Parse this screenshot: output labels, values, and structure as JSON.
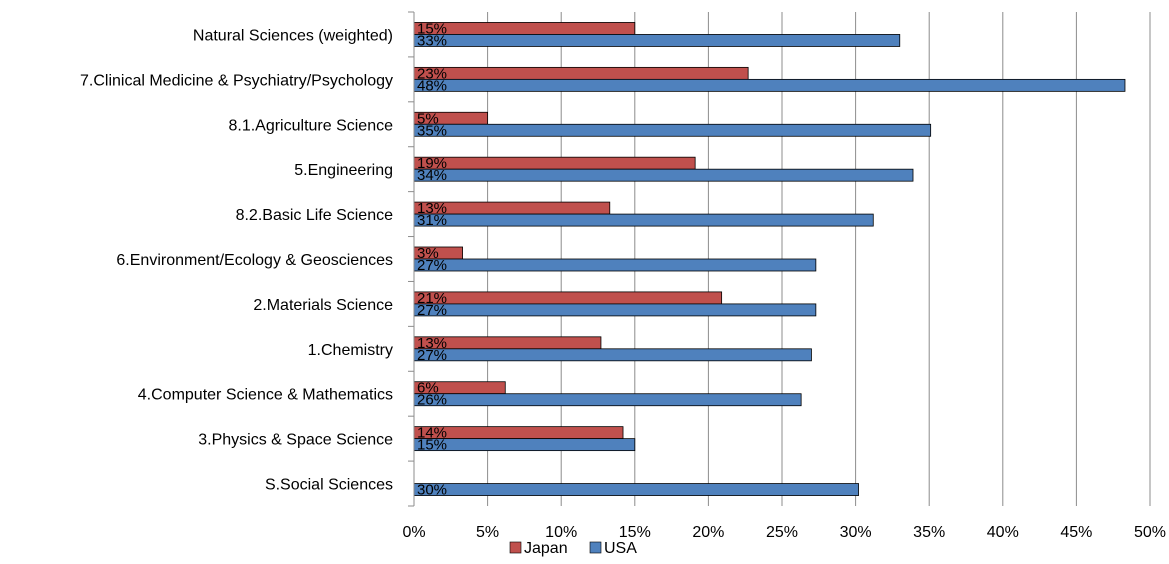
{
  "chart_data": {
    "type": "bar",
    "orientation": "horizontal",
    "categories": [
      "Natural Sciences (weighted)",
      "7.Clinical Medicine & Psychiatry/Psychology",
      "8.1.Agriculture Science",
      "5.Engineering",
      "8.2.Basic Life Science",
      "6.Environment/Ecology & Geosciences",
      "2.Materials Science",
      "1.Chemistry",
      "4.Computer Science & Mathematics",
      "3.Physics & Space Science",
      "S.Social Sciences"
    ],
    "series": [
      {
        "name": "Japan",
        "color": "#c0504d",
        "values": [
          15.0,
          22.7,
          5.0,
          19.1,
          13.3,
          3.3,
          20.9,
          12.7,
          6.2,
          14.2,
          null
        ],
        "labels": [
          "15%",
          "23%",
          "5%",
          "19%",
          "13%",
          "3%",
          "21%",
          "13%",
          "6%",
          "14%",
          ""
        ]
      },
      {
        "name": "USA",
        "color": "#4f81bd",
        "values": [
          33.0,
          48.3,
          35.1,
          33.9,
          31.2,
          27.3,
          27.3,
          27.0,
          26.3,
          15.0,
          30.2
        ],
        "labels": [
          "33%",
          "48%",
          "35%",
          "34%",
          "31%",
          "27%",
          "27%",
          "27%",
          "26%",
          "15%",
          "30%"
        ]
      }
    ],
    "xlim": [
      0,
      50
    ],
    "x_ticks": [
      "0%",
      "5%",
      "10%",
      "15%",
      "20%",
      "25%",
      "30%",
      "35%",
      "40%",
      "45%",
      "50%"
    ],
    "grid": "vertical",
    "legend_position": "bottom",
    "title": "",
    "xlabel": "",
    "ylabel": ""
  }
}
